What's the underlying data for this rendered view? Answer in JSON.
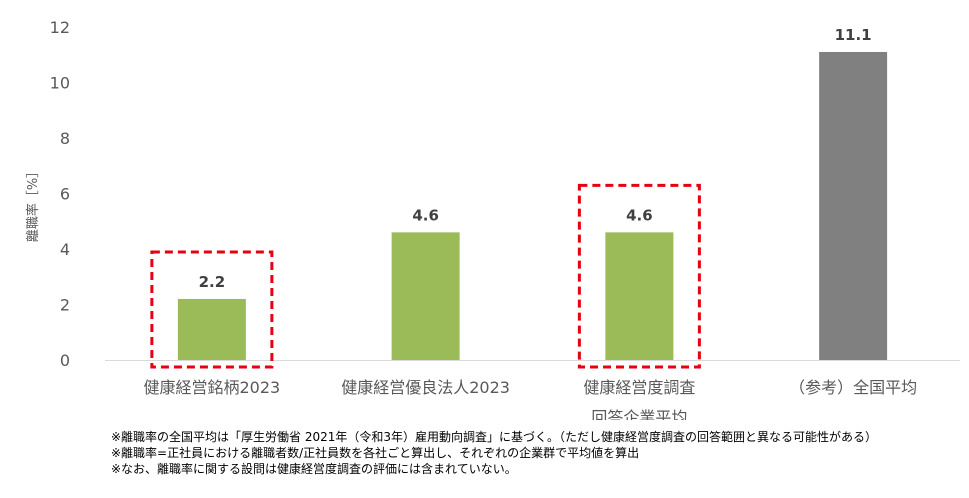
{
  "chart_data": {
    "type": "bar",
    "categories": [
      [
        "健康経営銘柄2023"
      ],
      [
        "健康経営優良法人2023"
      ],
      [
        "健康経営度調査",
        "回答企業平均"
      ],
      [
        "（参考）全国平均"
      ]
    ],
    "values": [
      2.2,
      4.6,
      4.6,
      11.1
    ],
    "value_labels": [
      "2.2",
      "4.6",
      "4.6",
      "11.1"
    ],
    "bar_colors": [
      "#9BBB59",
      "#9BBB59",
      "#9BBB59",
      "#808080"
    ],
    "highlighted": [
      true,
      false,
      true,
      false
    ],
    "highlight_color": "#E60012",
    "ylabel": "離職率［%］",
    "ylim": [
      0,
      12
    ],
    "yticks": [
      0,
      2,
      4,
      6,
      8,
      10,
      12
    ],
    "grid": false
  },
  "notes": [
    "※離職率の全国平均は「厚生労働省 2021年（令和3年）雇用動向調査」に基づく。（ただし健康経営度調査の回答範囲と異なる可能性がある）",
    "※離職率=正社員における離職者数/正社員数を各社ごと算出し、それぞれの企業群で平均値を算出",
    "※なお、離職率に関する設問は健康経営度調査の評価には含まれていない。"
  ]
}
